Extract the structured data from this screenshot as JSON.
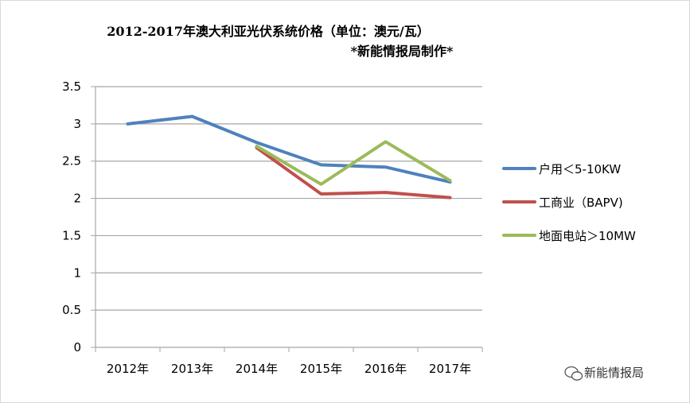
{
  "chart_data": {
    "type": "line",
    "title": "2012-2017年澳大利亚光伏系统价格（单位：澳元/瓦）",
    "subtitle": "*新能情报局制作*",
    "categories": [
      "2012年",
      "2013年",
      "2014年",
      "2015年",
      "2016年",
      "2017年"
    ],
    "ylim": [
      0,
      3.5
    ],
    "yticks": [
      "0",
      "0.5",
      "1",
      "1.5",
      "2",
      "2.5",
      "3",
      "3.5"
    ],
    "grid": true,
    "legend_position": "right",
    "series": [
      {
        "name": "户用＜5-10KW",
        "color": "#4f81bd",
        "values": [
          3.0,
          3.1,
          2.75,
          2.45,
          2.42,
          2.22
        ]
      },
      {
        "name": "工商业（BAPV)",
        "color": "#c0504d",
        "values": [
          null,
          null,
          2.68,
          2.06,
          2.08,
          2.01
        ]
      },
      {
        "name": "地面电站＞10MW",
        "color": "#9bbb59",
        "values": [
          null,
          null,
          2.7,
          2.19,
          2.76,
          2.24
        ]
      }
    ]
  },
  "watermark": {
    "text": "新能情报局",
    "icon": "wechat-icon"
  }
}
